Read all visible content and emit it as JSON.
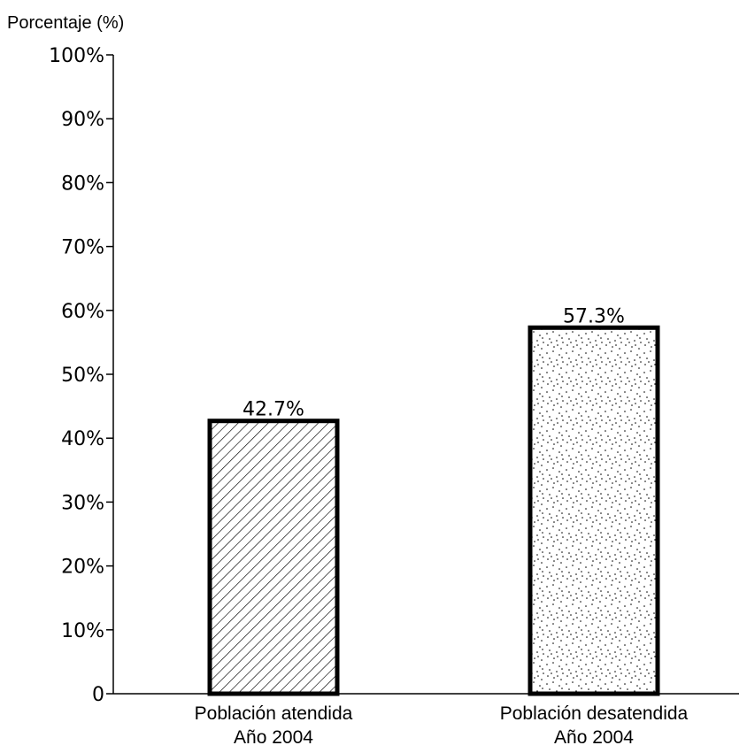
{
  "chart_data": {
    "type": "bar",
    "ylabel": "Porcentaje (%)",
    "ylim": [
      0,
      100
    ],
    "yticks": [
      "0",
      "10%",
      "20%",
      "30%",
      "40%",
      "50%",
      "60%",
      "70%",
      "80%",
      "90%",
      "100%"
    ],
    "categories": [
      [
        "Población atendida",
        "Año 2004"
      ],
      [
        "Población desatendida",
        "Año 2004"
      ]
    ],
    "values": [
      42.7,
      57.3
    ],
    "data_labels": [
      "42.7%",
      "57.3%"
    ],
    "bar_fills": [
      "diagonal-hatch",
      "dot-stipple"
    ],
    "grid": false,
    "legend": "none"
  }
}
